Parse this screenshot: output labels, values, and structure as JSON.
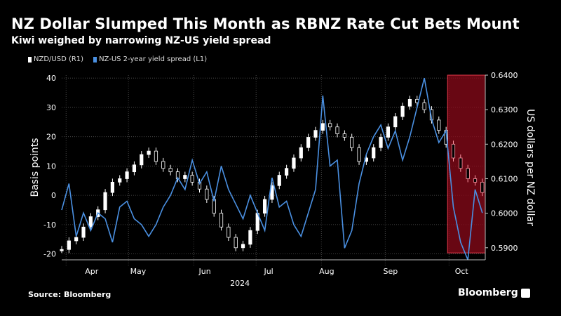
{
  "title": "NZ Dollar Slumped This Month as RBNZ Rate Cut Bets Mount",
  "subtitle": "Kiwi weighed by narrowing NZ-US yield spread",
  "legend": [
    {
      "label": "NZD/USD (R1)",
      "color": "#ffffff"
    },
    {
      "label": "NZ-US 2-year yield spread (L1)",
      "color": "#4a90e2"
    }
  ],
  "source": "Source: Bloomberg",
  "brand": "Bloomberg",
  "chart_data": {
    "type": "line",
    "ylabel_left": "Basis points",
    "ylabel_right": "US dollars per NZ dollar",
    "ylim_left": [
      -22,
      41
    ],
    "yticks_left": [
      "40",
      "30",
      "20",
      "10",
      "0",
      "-10",
      "-20"
    ],
    "ylim_right": [
      0.5865,
      0.64
    ],
    "yticks_right": [
      "0.6400",
      "0.6300",
      "0.6200",
      "0.6100",
      "0.6000",
      "0.5900"
    ],
    "x_tick_labels": [
      "Apr",
      "May",
      "Jun",
      "Jul",
      "Aug",
      "Sep",
      "Oct"
    ],
    "x_year_label": "2024",
    "grid": true,
    "highlight_region": {
      "start_week": 26.6,
      "end_week": 29.2,
      "color": "#8b0a1a"
    },
    "series": [
      {
        "name": "NZ-US 2-year yield spread (L1)",
        "axis": "left",
        "color": "#4a90e2",
        "x_weeks": [
          0,
          0.5,
          1,
          1.5,
          2,
          2.5,
          3,
          3.5,
          4,
          4.5,
          5,
          5.5,
          6,
          6.5,
          7,
          7.5,
          8,
          8.5,
          9,
          9.5,
          10,
          10.5,
          11,
          11.5,
          12,
          12.5,
          13,
          13.5,
          14,
          14.5,
          15,
          15.5,
          16,
          16.5,
          17,
          17.5,
          18,
          18.5,
          19,
          19.5,
          20,
          20.5,
          21,
          21.5,
          22,
          22.5,
          23,
          23.5,
          24,
          24.5,
          25,
          25.5,
          26,
          26.5,
          27,
          27.5,
          28,
          28.5,
          29
        ],
        "values": [
          -5,
          4,
          -14,
          -6,
          -12,
          -6,
          -8,
          -16,
          -4,
          -2,
          -8,
          -10,
          -14,
          -10,
          -4,
          0,
          6,
          2,
          12,
          4,
          8,
          -2,
          10,
          2,
          -3,
          -8,
          0,
          -6,
          -12,
          6,
          -4,
          -2,
          -10,
          -14,
          -6,
          2,
          34,
          10,
          12,
          -18,
          -12,
          4,
          14,
          20,
          24,
          16,
          22,
          12,
          20,
          30,
          40,
          26,
          18,
          22,
          -4,
          -16,
          -22,
          2,
          -6
        ]
      },
      {
        "name": "NZD/USD (R1)",
        "axis": "right",
        "color": "#ffffff",
        "x_weeks": [
          0,
          0.5,
          1,
          1.5,
          2,
          2.5,
          3,
          3.5,
          4,
          4.5,
          5,
          5.5,
          6,
          6.5,
          7,
          7.5,
          8,
          8.5,
          9,
          9.5,
          10,
          10.5,
          11,
          11.5,
          12,
          12.5,
          13,
          13.5,
          14,
          14.5,
          15,
          15.5,
          16,
          16.5,
          17,
          17.5,
          18,
          18.5,
          19,
          19.5,
          20,
          20.5,
          21,
          21.5,
          22,
          22.5,
          23,
          23.5,
          24,
          24.5,
          25,
          25.5,
          26,
          26.5,
          27,
          27.5,
          28,
          28.5,
          29
        ],
        "values": [
          0.5895,
          0.592,
          0.593,
          0.596,
          0.599,
          0.601,
          0.606,
          0.609,
          0.61,
          0.612,
          0.614,
          0.617,
          0.618,
          0.615,
          0.613,
          0.612,
          0.61,
          0.611,
          0.609,
          0.607,
          0.604,
          0.6,
          0.596,
          0.593,
          0.59,
          0.591,
          0.595,
          0.6,
          0.604,
          0.608,
          0.611,
          0.613,
          0.616,
          0.619,
          0.622,
          0.624,
          0.626,
          0.625,
          0.623,
          0.622,
          0.619,
          0.615,
          0.616,
          0.619,
          0.622,
          0.625,
          0.628,
          0.631,
          0.633,
          0.632,
          0.63,
          0.627,
          0.624,
          0.62,
          0.616,
          0.613,
          0.61,
          0.609,
          0.606
        ]
      }
    ]
  }
}
